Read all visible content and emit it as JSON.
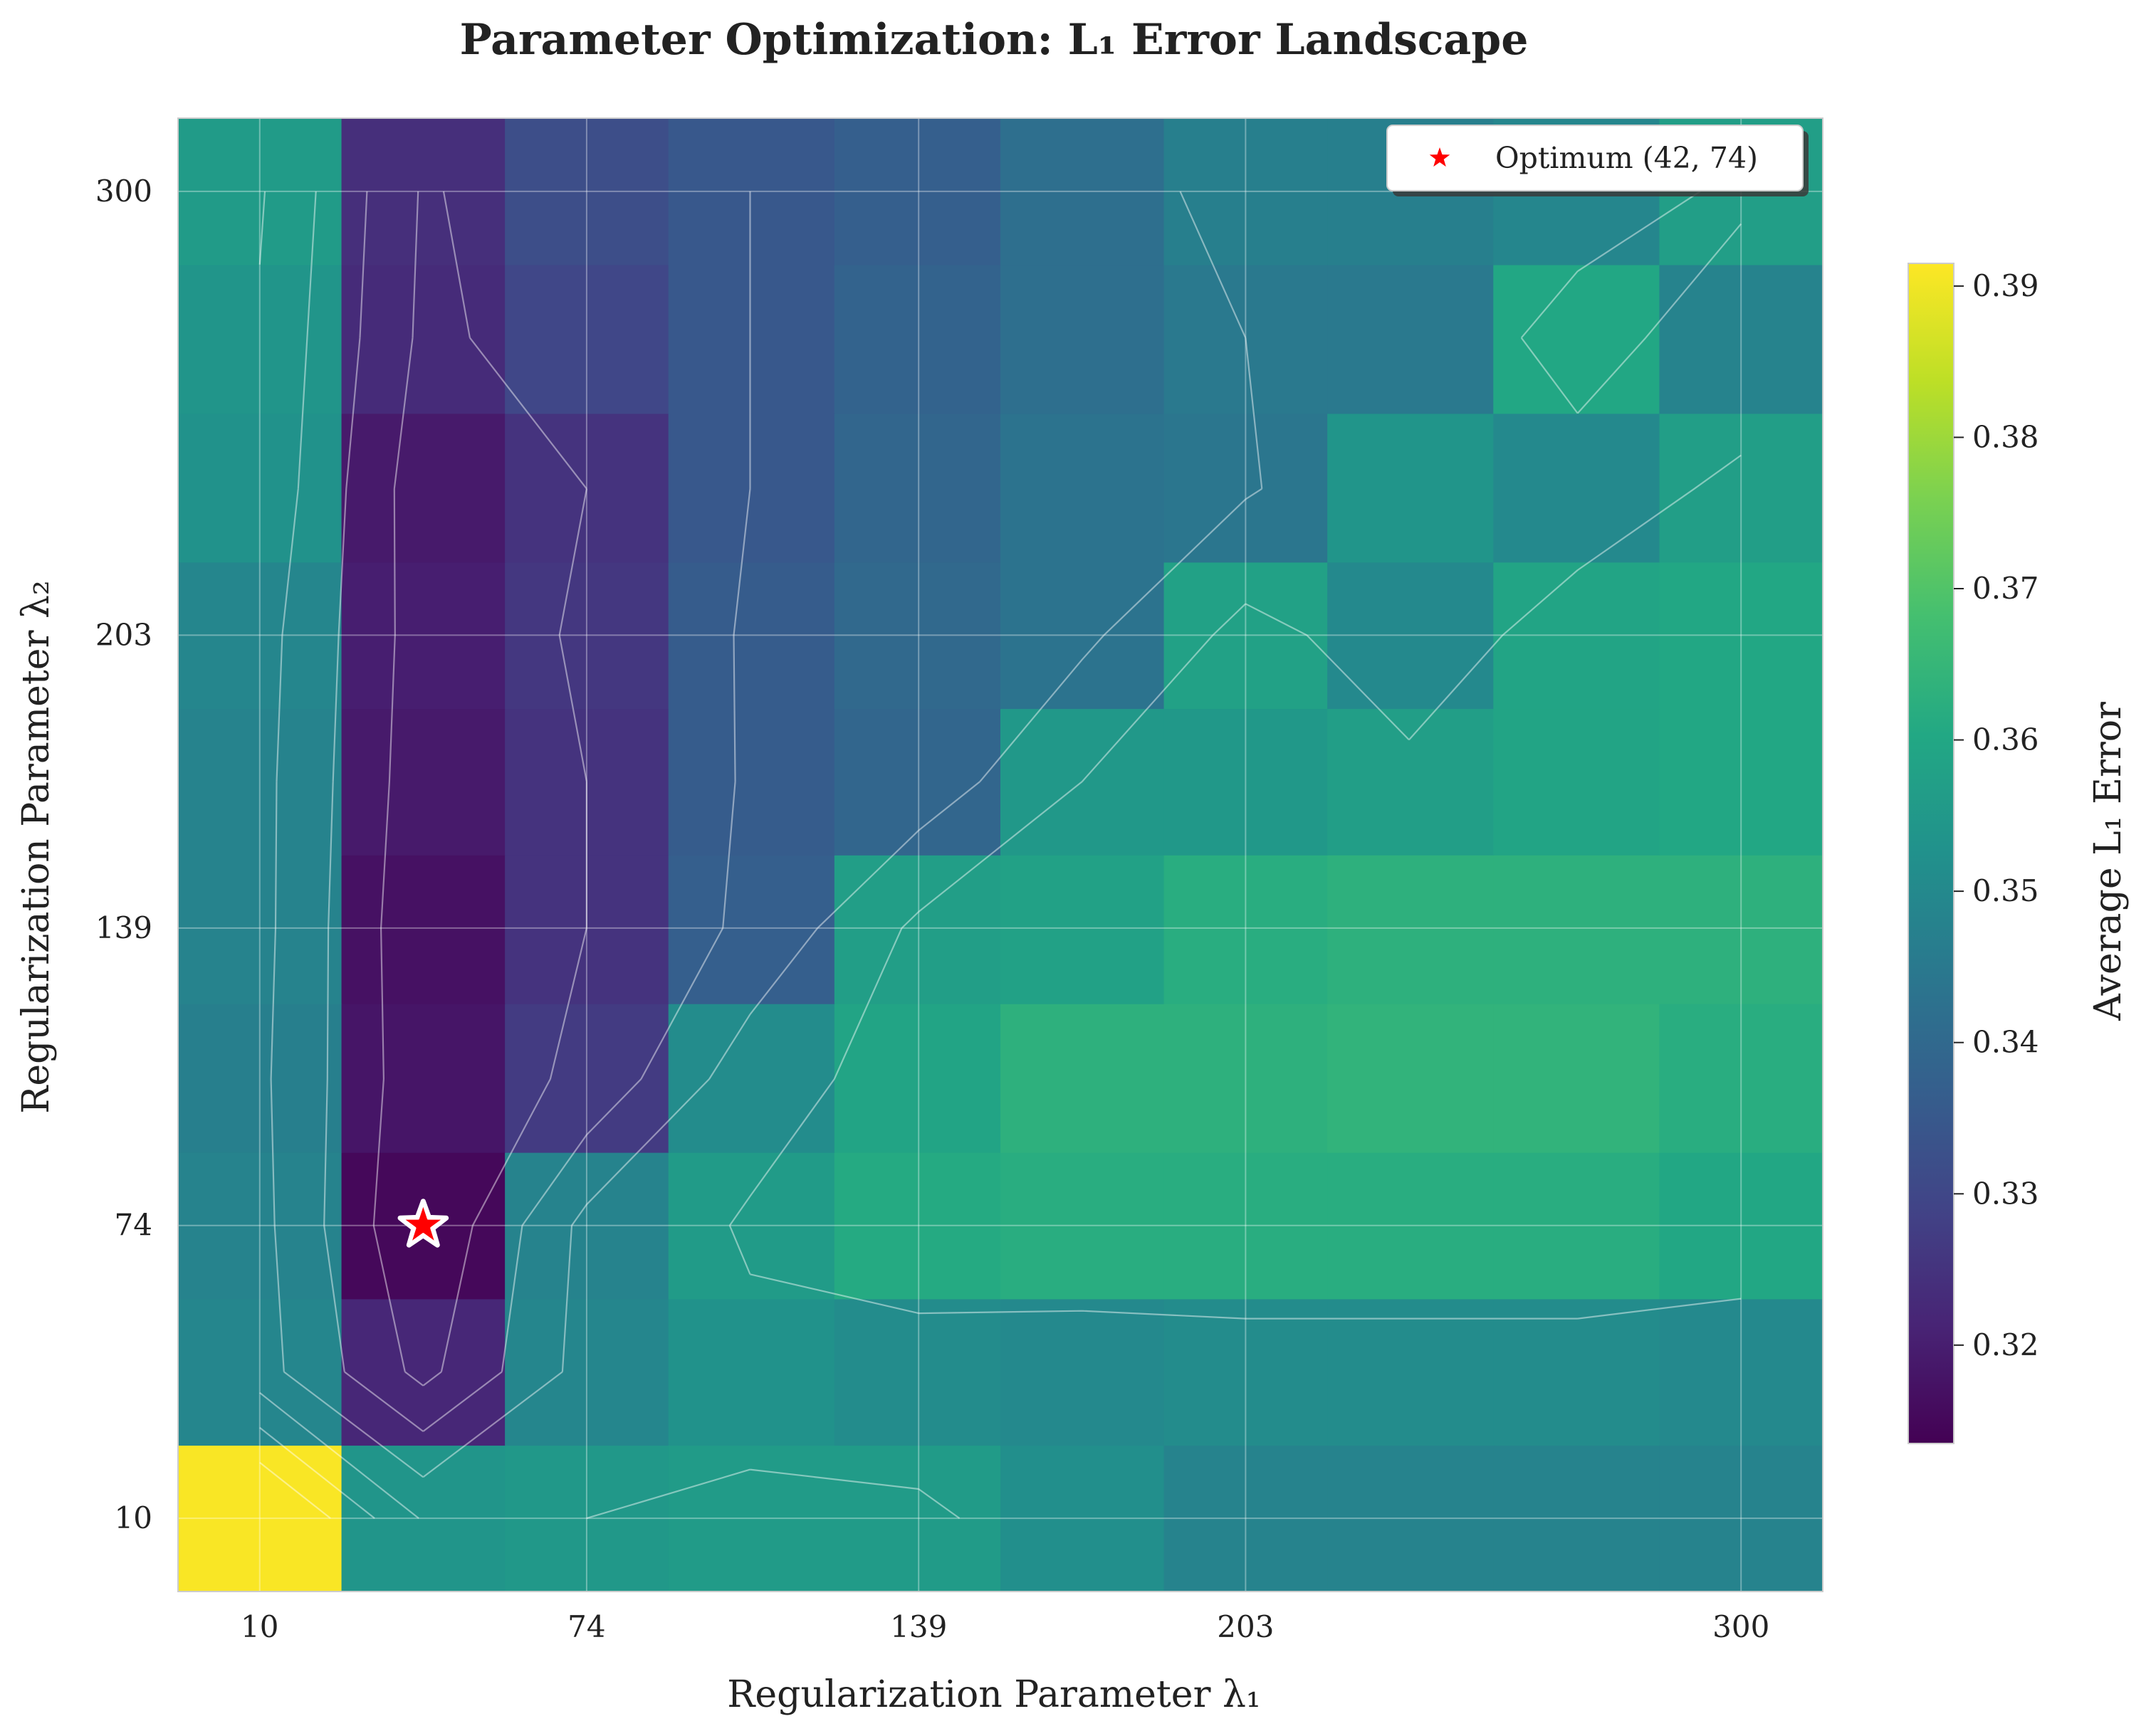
{
  "chart_data": {
    "type": "heatmap",
    "title": "Parameter Optimization: L₁ Error Landscape",
    "xlabel": "Regularization Parameter λ₁",
    "ylabel": "Regularization Parameter λ₂",
    "colorbar_label": "Average L₁ Error",
    "colormap": "viridis",
    "x_grid_values": [
      10,
      42,
      74,
      106,
      139,
      171,
      203,
      235,
      268,
      300
    ],
    "y_grid_values": [
      10,
      42,
      74,
      106,
      139,
      171,
      203,
      235,
      268,
      300
    ],
    "x_ticks": [
      10,
      74,
      139,
      203,
      300
    ],
    "y_ticks": [
      10,
      74,
      139,
      203,
      300
    ],
    "x_tick_labels": [
      "10",
      "74",
      "139",
      "203",
      "300"
    ],
    "y_tick_labels": [
      "10",
      "74",
      "139",
      "203",
      "300"
    ],
    "xlim": [
      -6,
      316
    ],
    "ylim": [
      -6,
      316
    ],
    "color_range": [
      0.3135,
      0.3915
    ],
    "colorbar_ticks": [
      0.32,
      0.33,
      0.34,
      0.35,
      0.36,
      0.37,
      0.38,
      0.39
    ],
    "colorbar_tick_labels": [
      "0.32",
      "0.33",
      "0.34",
      "0.35",
      "0.36",
      "0.37",
      "0.38",
      "0.39"
    ],
    "grid": true,
    "values": [
      [
        0.391,
        0.354,
        0.355,
        0.356,
        0.356,
        0.352,
        0.348,
        0.348,
        0.348,
        0.348
      ],
      [
        0.349,
        0.322,
        0.349,
        0.353,
        0.351,
        0.35,
        0.351,
        0.351,
        0.351,
        0.35
      ],
      [
        0.348,
        0.315,
        0.348,
        0.356,
        0.361,
        0.362,
        0.362,
        0.362,
        0.362,
        0.36
      ],
      [
        0.347,
        0.318,
        0.327,
        0.351,
        0.359,
        0.363,
        0.363,
        0.364,
        0.364,
        0.362
      ],
      [
        0.348,
        0.317,
        0.325,
        0.337,
        0.357,
        0.358,
        0.362,
        0.363,
        0.363,
        0.363
      ],
      [
        0.348,
        0.319,
        0.325,
        0.336,
        0.339,
        0.355,
        0.355,
        0.357,
        0.359,
        0.36
      ],
      [
        0.349,
        0.32,
        0.326,
        0.336,
        0.34,
        0.343,
        0.358,
        0.35,
        0.359,
        0.36
      ],
      [
        0.353,
        0.319,
        0.325,
        0.335,
        0.339,
        0.343,
        0.344,
        0.354,
        0.35,
        0.357
      ],
      [
        0.354,
        0.323,
        0.33,
        0.335,
        0.338,
        0.342,
        0.345,
        0.345,
        0.36,
        0.348
      ],
      [
        0.356,
        0.324,
        0.332,
        0.335,
        0.337,
        0.342,
        0.347,
        0.347,
        0.349,
        0.357
      ]
    ],
    "optimum": {
      "x": 42,
      "y": 74,
      "label": "Optimum (42, 74)",
      "color": "#ff0000"
    },
    "legend_position": "top-right"
  }
}
